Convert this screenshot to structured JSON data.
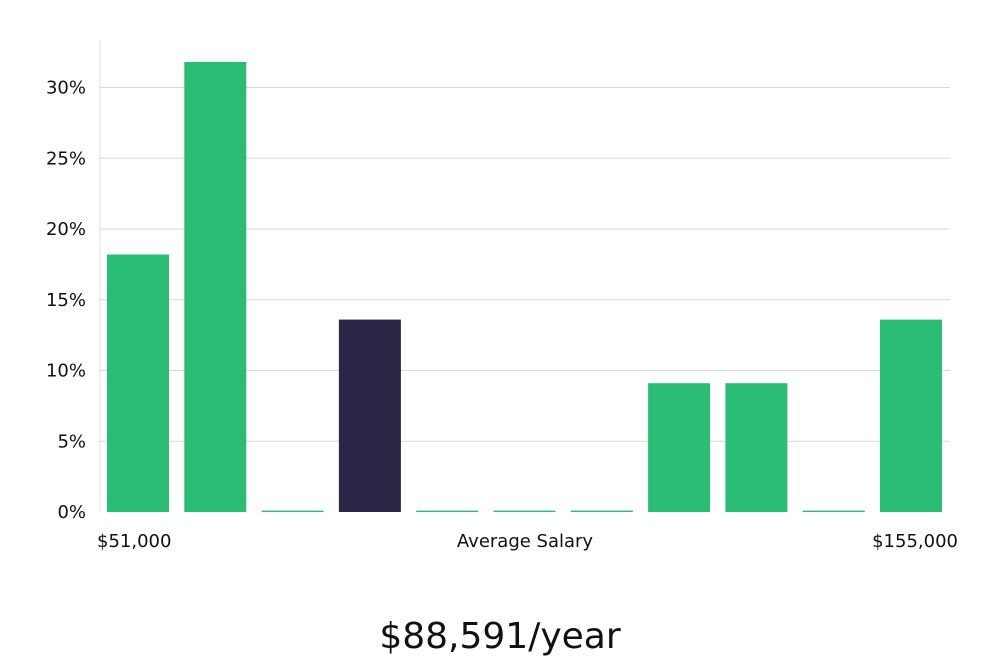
{
  "chart_data": {
    "type": "bar",
    "xlabel": "Average Salary",
    "x_min_label": "$51,000",
    "x_max_label": "$155,000",
    "ylim": [
      0,
      33
    ],
    "yticks": [
      0,
      5,
      10,
      15,
      20,
      25,
      30
    ],
    "ytick_labels": [
      "0%",
      "5%",
      "10%",
      "15%",
      "20%",
      "25%",
      "30%"
    ],
    "values": [
      18.2,
      31.8,
      0.1,
      13.6,
      0.1,
      0.1,
      0.1,
      9.1,
      9.1,
      0.1,
      13.6
    ],
    "highlight_index": 3,
    "grid": true
  },
  "headline": "$88,591/year",
  "colors": {
    "bar": "#2bbd74",
    "bar_highlight": "#2a2746",
    "grid": "#d9d9d9",
    "text": "#111111"
  }
}
